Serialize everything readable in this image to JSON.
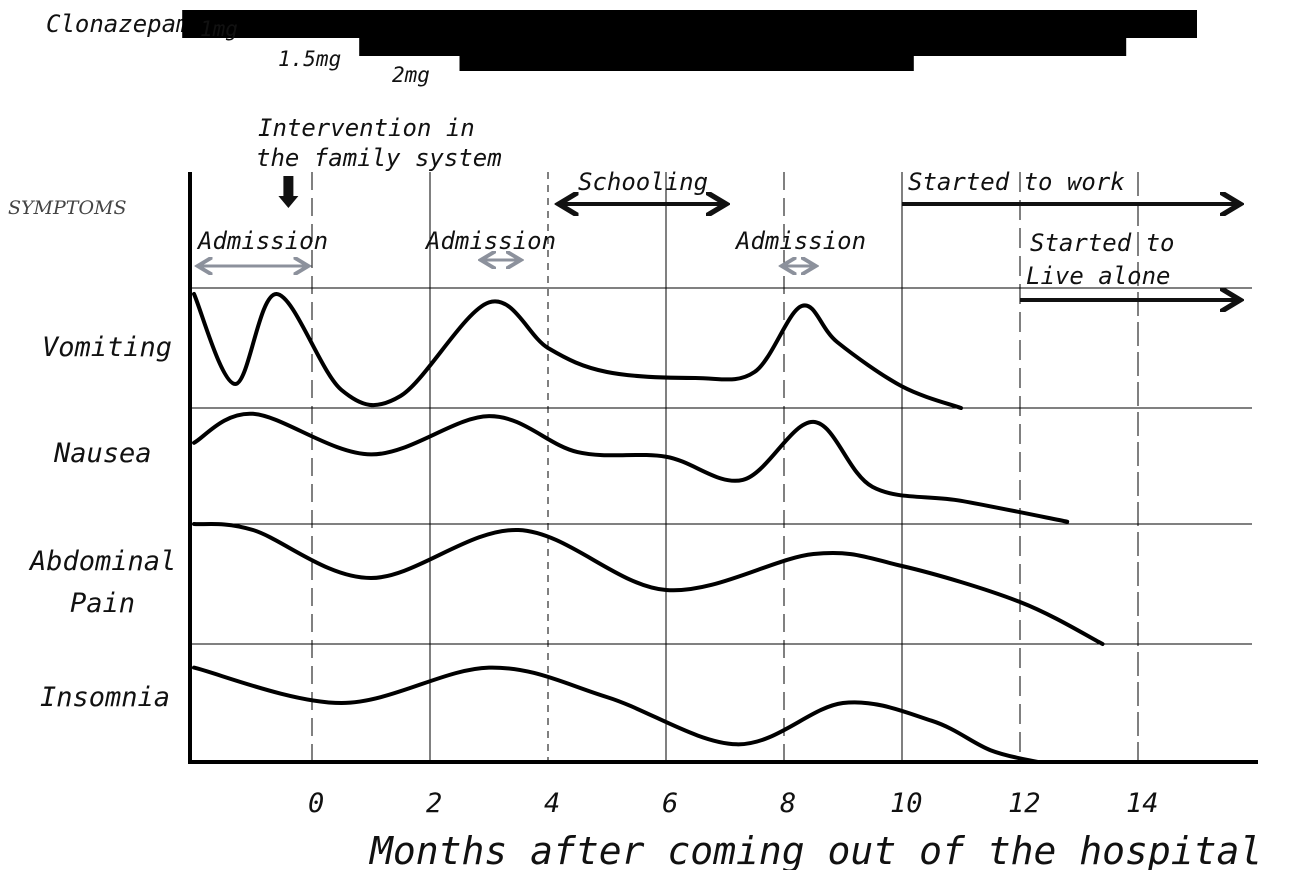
{
  "chart_data": {
    "type": "line",
    "title": "",
    "xlabel": "Months after coming out of the hospital",
    "ylabel": "SYMPTOMS",
    "x_tick_labels": [
      "0",
      "2",
      "4",
      "6",
      "8",
      "10",
      "12",
      "14"
    ],
    "xlim": [
      -2,
      16
    ],
    "grid": true,
    "medication": {
      "label": "Clonazepam",
      "doses": [
        {
          "label": "1mg",
          "start": -2.2,
          "end": 15.0
        },
        {
          "label": "1.5mg",
          "start": 0.8,
          "end": 13.8
        },
        {
          "label": "2mg",
          "start": 2.5,
          "end": 10.2
        }
      ]
    },
    "events": {
      "intervention": {
        "label": "Intervention in the family system",
        "x": -0.4
      },
      "admissions": [
        {
          "label": "Admission",
          "start": -2,
          "end": 0
        },
        {
          "label": "Admission",
          "start": 2.8,
          "end": 3.6
        },
        {
          "label": "Admission",
          "start": 7.9,
          "end": 8.6
        }
      ],
      "schooling": {
        "label": "Schooling",
        "start": 4.1,
        "end": 7.1
      },
      "started_to_work": {
        "label": "Started to work",
        "start": 10.0,
        "end": 15.0
      },
      "started_to_live_alone": {
        "label_line1": "Started to",
        "label_line2": "Live alone",
        "start": 12.0,
        "end": 15.0
      }
    },
    "series": [
      {
        "name": "Vomiting",
        "points": [
          [
            -2,
            0.95
          ],
          [
            -1.3,
            0.2
          ],
          [
            -0.6,
            0.95
          ],
          [
            0.5,
            0.15
          ],
          [
            1.5,
            0.1
          ],
          [
            3.0,
            0.88
          ],
          [
            4.0,
            0.5
          ],
          [
            5.0,
            0.3
          ],
          [
            6.5,
            0.25
          ],
          [
            7.5,
            0.3
          ],
          [
            8.3,
            0.85
          ],
          [
            8.9,
            0.55
          ],
          [
            10.0,
            0.18
          ],
          [
            11.0,
            0.0
          ]
        ]
      },
      {
        "name": "Nausea",
        "points": [
          [
            -2,
            0.7
          ],
          [
            -1.0,
            0.95
          ],
          [
            1.0,
            0.6
          ],
          [
            3.0,
            0.93
          ],
          [
            4.5,
            0.62
          ],
          [
            6.0,
            0.58
          ],
          [
            7.3,
            0.38
          ],
          [
            8.5,
            0.88
          ],
          [
            9.5,
            0.32
          ],
          [
            11.0,
            0.2
          ],
          [
            12.8,
            0.02
          ]
        ]
      },
      {
        "name": "Abdominal Pain",
        "points": [
          [
            -2,
            1.0
          ],
          [
            -1.0,
            0.95
          ],
          [
            1.0,
            0.55
          ],
          [
            3.5,
            0.95
          ],
          [
            6.0,
            0.45
          ],
          [
            8.5,
            0.75
          ],
          [
            10.0,
            0.65
          ],
          [
            12.0,
            0.35
          ],
          [
            13.4,
            0.0
          ]
        ]
      },
      {
        "name": "Insomnia",
        "points": [
          [
            -2,
            0.8
          ],
          [
            0.5,
            0.5
          ],
          [
            3.0,
            0.8
          ],
          [
            5.0,
            0.55
          ],
          [
            7.2,
            0.15
          ],
          [
            9.0,
            0.5
          ],
          [
            10.5,
            0.35
          ],
          [
            11.5,
            0.1
          ],
          [
            12.3,
            0.0
          ]
        ]
      }
    ]
  }
}
